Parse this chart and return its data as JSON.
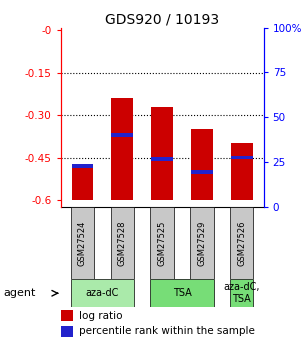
{
  "title": "GDS920 / 10193",
  "samples": [
    "GSM27524",
    "GSM27528",
    "GSM27525",
    "GSM27529",
    "GSM27526"
  ],
  "log_ratios": [
    -0.48,
    -0.24,
    -0.27,
    -0.35,
    -0.4
  ],
  "bar_bottom": -0.6,
  "percentile_values": [
    -0.48,
    -0.37,
    -0.455,
    -0.5,
    -0.45
  ],
  "ylim_left": [
    -0.625,
    0.01
  ],
  "ylim_right": [
    0,
    100
  ],
  "yticks_left": [
    0.0,
    -0.15,
    -0.3,
    -0.45,
    -0.6
  ],
  "yticks_right": [
    0,
    25,
    50,
    75,
    100
  ],
  "ytick_labels_left": [
    "-0",
    "-0.15",
    "-0.30",
    "-0.45",
    "-0.6"
  ],
  "ytick_labels_right": [
    "0",
    "25",
    "50",
    "75",
    "100%"
  ],
  "bar_color": "#cc0000",
  "blue_color": "#2222cc",
  "agent_groups": [
    {
      "label": "aza-dC",
      "indices": [
        0,
        1
      ],
      "color": "#aaeaaa"
    },
    {
      "label": "TSA",
      "indices": [
        2,
        3
      ],
      "color": "#77dd77"
    },
    {
      "label": "aza-dC,\nTSA",
      "indices": [
        4
      ],
      "color": "#77dd77"
    }
  ],
  "legend_labels": [
    "log ratio",
    "percentile rank within the sample"
  ],
  "legend_colors": [
    "#cc0000",
    "#2222cc"
  ],
  "background_color": "#ffffff",
  "sample_box_color": "#c8c8c8",
  "bar_width": 0.55
}
